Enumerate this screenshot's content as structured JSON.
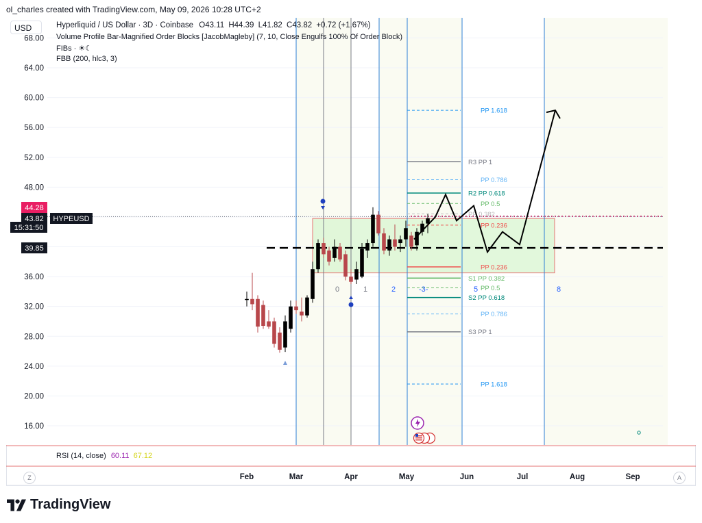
{
  "header": {
    "credit": "ol_charles created with TradingView.com, May 09, 2026 10:28 UTC+2"
  },
  "legend": {
    "currency_button": "USD",
    "symbol_line": {
      "name": "Hyperliquid / US Dollar · 3D · Coinbase",
      "o": "O43.11",
      "h": "H44.39",
      "l": "L41.82",
      "c": "C43.82",
      "change": "+0.72 (+1.67%)"
    },
    "indicators": [
      "Volume Profile Bar-Magnified Order Blocks [JacobMagleby] (7, 10, Close Engulfs 100% Of Order Block)",
      "FIBs · ☀☾",
      "FBB (200, hlc3, 3)"
    ]
  },
  "price_scale": {
    "labels": [
      "68.00",
      "64.00",
      "60.00",
      "56.00",
      "52.00",
      "48.00",
      "44.00",
      "40.00",
      "36.00",
      "32.00",
      "28.00",
      "24.00",
      "20.00",
      "16.00"
    ],
    "tags": {
      "high": "44.28",
      "last": "43.82",
      "symbol": "HYPEUSD",
      "countdown": "15:31:50",
      "level": "39.85"
    }
  },
  "time_scale": {
    "labels": [
      "Feb",
      "Mar",
      "Apr",
      "May",
      "Jun",
      "Jul",
      "Aug",
      "Sep"
    ],
    "left_button": "Z",
    "right_button": "A"
  },
  "rsi": {
    "label": "RSI (14, close)",
    "value1": "60.11",
    "value2": "67.12",
    "value1_color": "#9c27b0",
    "value2_color": "#e6e61a"
  },
  "pivot_labels": {
    "r3": "R3 PP 1",
    "pp1618_top": "PP 1.618",
    "pp786_top": "PP 0.786",
    "r2": "R2 PP 0.618",
    "pp05_top": "PP 0.5",
    "pp382_top": "PP 0.382",
    "pp236_top": "PP 0.236",
    "pp236_bot": "PP 0.236",
    "s1": "S1 PP 0.382",
    "pp05_bot": "PP 0.5",
    "s2": "S2 PP 0.618",
    "pp786_bot": "PP 0.786",
    "s3": "S3 PP 1",
    "pp1618_bot": "PP 1.618"
  },
  "cycle_labels": [
    "0",
    "1",
    "2",
    "-3-",
    "5",
    "8"
  ],
  "footer": {
    "brand": "TradingView"
  },
  "colors": {
    "up": "#000000",
    "down": "#b8474b",
    "blue_line": "#2962ff",
    "zone_fill": "#d8f5d0",
    "zone_border": "#e57373",
    "pivot_blue": "#2196f3",
    "pivot_teal": "#00897b",
    "pivot_green": "#66bb6a",
    "pivot_red": "#ef5350",
    "pivot_gray": "#787b86"
  },
  "chart_data": {
    "type": "candlestick",
    "symbol": "HYPEUSD",
    "timeframe": "3D",
    "ylim": [
      13,
      70
    ],
    "candles": [
      {
        "o": 33.0,
        "h": 34.0,
        "l": 32.0,
        "c": 33.0
      },
      {
        "o": 33.0,
        "h": 36.5,
        "l": 31.5,
        "c": 32.3
      },
      {
        "o": 33.0,
        "h": 33.5,
        "l": 28.5,
        "c": 29.3
      },
      {
        "o": 32.2,
        "h": 32.8,
        "l": 29.0,
        "c": 29.4
      },
      {
        "o": 30.0,
        "h": 31.5,
        "l": 29.0,
        "c": 29.3
      },
      {
        "o": 30.0,
        "h": 30.5,
        "l": 26.5,
        "c": 27.0
      },
      {
        "o": 28.5,
        "h": 29.2,
        "l": 25.8,
        "c": 26.2
      },
      {
        "o": 26.5,
        "h": 30.8,
        "l": 25.9,
        "c": 30.0
      },
      {
        "o": 29.0,
        "h": 32.8,
        "l": 28.5,
        "c": 32.0
      },
      {
        "o": 32.0,
        "h": 32.8,
        "l": 31.0,
        "c": 31.5
      },
      {
        "o": 31.3,
        "h": 33.2,
        "l": 30.0,
        "c": 30.8
      },
      {
        "o": 30.8,
        "h": 33.5,
        "l": 30.5,
        "c": 33.2
      },
      {
        "o": 33.0,
        "h": 38.0,
        "l": 32.5,
        "c": 37.0
      },
      {
        "o": 37.0,
        "h": 41.0,
        "l": 36.5,
        "c": 40.5
      },
      {
        "o": 40.5,
        "h": 41.2,
        "l": 38.5,
        "c": 39.0
      },
      {
        "o": 39.5,
        "h": 40.0,
        "l": 37.5,
        "c": 38.0
      },
      {
        "o": 38.5,
        "h": 41.0,
        "l": 38.0,
        "c": 40.0
      },
      {
        "o": 40.0,
        "h": 40.5,
        "l": 38.0,
        "c": 38.3
      },
      {
        "o": 39.0,
        "h": 39.5,
        "l": 35.5,
        "c": 36.0
      },
      {
        "o": 36.0,
        "h": 37.0,
        "l": 35.0,
        "c": 35.3
      },
      {
        "o": 35.6,
        "h": 38.0,
        "l": 35.0,
        "c": 37.0
      },
      {
        "o": 36.0,
        "h": 40.5,
        "l": 35.8,
        "c": 39.7
      },
      {
        "o": 39.5,
        "h": 41.0,
        "l": 38.5,
        "c": 40.5
      },
      {
        "o": 40.5,
        "h": 45.3,
        "l": 40.0,
        "c": 44.3
      },
      {
        "o": 44.3,
        "h": 44.8,
        "l": 41.5,
        "c": 41.8
      },
      {
        "o": 41.8,
        "h": 42.5,
        "l": 39.0,
        "c": 39.5
      },
      {
        "o": 39.5,
        "h": 41.5,
        "l": 38.8,
        "c": 41.0
      },
      {
        "o": 41.0,
        "h": 43.0,
        "l": 39.5,
        "c": 40.0
      },
      {
        "o": 40.5,
        "h": 41.5,
        "l": 39.3,
        "c": 41.0
      },
      {
        "o": 41.0,
        "h": 43.5,
        "l": 40.0,
        "c": 42.5
      },
      {
        "o": 41.5,
        "h": 42.0,
        "l": 39.5,
        "c": 40.0
      },
      {
        "o": 40.2,
        "h": 42.5,
        "l": 39.5,
        "c": 42.0
      },
      {
        "o": 42.0,
        "h": 43.5,
        "l": 41.5,
        "c": 43.1
      },
      {
        "o": 43.11,
        "h": 44.39,
        "l": 41.82,
        "c": 43.82
      }
    ],
    "projected_path": [
      [
        0,
        41
      ],
      [
        1,
        44
      ],
      [
        2,
        47.0
      ],
      [
        3,
        43.5
      ],
      [
        4,
        45.5
      ],
      [
        5,
        39.3
      ],
      [
        6,
        42.0
      ],
      [
        7,
        40.3
      ],
      [
        8,
        58.3
      ]
    ],
    "horizontal_levels": {
      "dashed_support": 39.85,
      "dotted_high": 44.0
    },
    "order_block_zone": [
      36.5,
      43.8
    ],
    "pivot_levels": {
      "PP 1.618 top": 58.3,
      "R3 PP 1": 51.4,
      "PP 0.786 top": 49.0,
      "R2 PP 0.618": 47.2,
      "PP 0.5 top": 45.8,
      "PP 0.382 top": 44.4,
      "PP 0.236 top": 42.9,
      "PP 0.236 bottom": 37.3,
      "S1 PP 0.382": 35.8,
      "PP 0.5 bottom": 34.5,
      "S2 PP 0.618": 33.2,
      "PP 0.786 bottom": 31.0,
      "S3 PP 1": 28.6,
      "PP 1.618 bottom": 21.6
    }
  }
}
